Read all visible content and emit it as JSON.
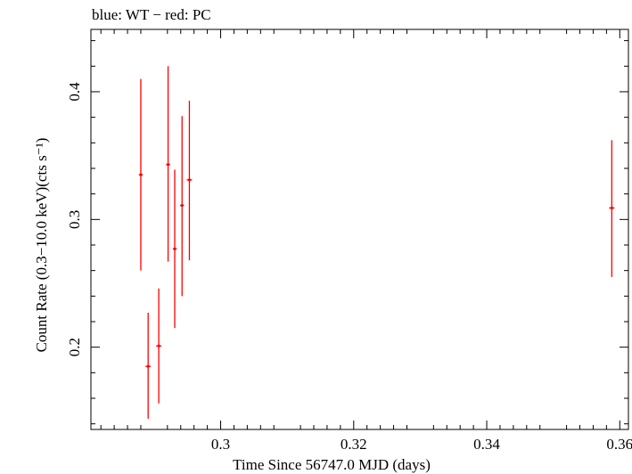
{
  "chart_data": {
    "type": "scatter",
    "title": "blue: WT − red: PC",
    "xlabel": "Time Since 56747.0 MJD (days)",
    "ylabel": "Count Rate (0.3−10.0 keV)(cts s⁻¹)",
    "xlim": [
      0.2805,
      0.3613
    ],
    "ylim": [
      0.1356,
      0.4488
    ],
    "xticks": [
      0.3,
      0.32,
      0.34,
      0.36
    ],
    "xtick_labels": [
      "0.3",
      "0.32",
      "0.34",
      "0.36"
    ],
    "yticks": [
      0.2,
      0.3,
      0.4
    ],
    "ytick_labels": [
      "0.2",
      "0.3",
      "0.4"
    ],
    "grid": false,
    "legend": "none",
    "series": [
      {
        "color": "#ff0000",
        "points": [
          {
            "x": 0.288,
            "y": 0.335,
            "xerr": 0.0003,
            "ylo": 0.26,
            "yhi": 0.41
          },
          {
            "x": 0.2891,
            "y": 0.185,
            "xerr": 0.0004,
            "ylo": 0.144,
            "yhi": 0.227
          },
          {
            "x": 0.2907,
            "y": 0.201,
            "xerr": 0.0004,
            "ylo": 0.156,
            "yhi": 0.246
          },
          {
            "x": 0.2921,
            "y": 0.343,
            "xerr": 0.0003,
            "ylo": 0.267,
            "yhi": 0.42
          },
          {
            "x": 0.2931,
            "y": 0.277,
            "xerr": 0.0003,
            "ylo": 0.215,
            "yhi": 0.339
          },
          {
            "x": 0.2942,
            "y": 0.311,
            "xerr": 0.0003,
            "ylo": 0.24,
            "yhi": 0.381
          },
          {
            "x": 0.2953,
            "y": 0.331,
            "xerr": 0.0004,
            "ylo": 0.268,
            "yhi": 0.393
          },
          {
            "x": 0.3588,
            "y": 0.309,
            "xerr": 0.0004,
            "ylo": 0.255,
            "yhi": 0.362
          }
        ]
      }
    ]
  }
}
